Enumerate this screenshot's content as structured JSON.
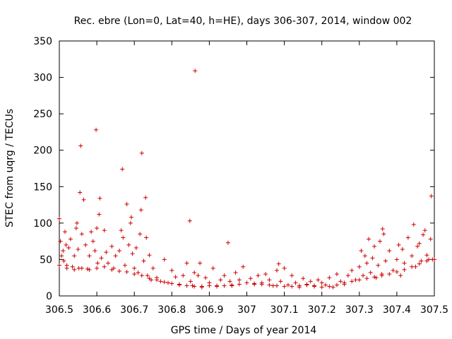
{
  "chart_data": {
    "type": "scatter",
    "title": "Rec. ebre (Lon=0, Lat=40, h=HE), days 306-307, 2014, window 002",
    "xlabel": "GPS time / Days of year 2014",
    "ylabel": "STEC from uqrg / TECUs",
    "xlim": [
      306.5,
      307.5
    ],
    "ylim": [
      0,
      350
    ],
    "xticks": [
      "306.5",
      "306.6",
      "306.7",
      "306.8",
      "306.9",
      "307",
      "307.1",
      "307.2",
      "307.3",
      "307.4",
      "307.5"
    ],
    "yticks": [
      "0",
      "50",
      "100",
      "150",
      "200",
      "250",
      "300",
      "350"
    ],
    "marker": "+",
    "color": "#cc0000",
    "grid": false,
    "legend": false,
    "series": [
      {
        "name": "STEC",
        "points": [
          [
            306.5,
            106
          ],
          [
            306.503,
            75
          ],
          [
            306.506,
            55
          ],
          [
            306.51,
            62
          ],
          [
            306.512,
            48
          ],
          [
            306.515,
            88
          ],
          [
            306.518,
            70
          ],
          [
            306.52,
            42
          ],
          [
            306.525,
            66
          ],
          [
            306.53,
            78
          ],
          [
            306.535,
            40
          ],
          [
            306.54,
            55
          ],
          [
            306.545,
            93
          ],
          [
            306.547,
            100
          ],
          [
            306.55,
            64
          ],
          [
            306.552,
            38
          ],
          [
            306.555,
            142
          ],
          [
            306.557,
            206
          ],
          [
            306.56,
            85
          ],
          [
            306.565,
            132
          ],
          [
            306.57,
            70
          ],
          [
            306.575,
            37
          ],
          [
            306.58,
            55
          ],
          [
            306.585,
            88
          ],
          [
            306.59,
            75
          ],
          [
            306.595,
            62
          ],
          [
            306.598,
            228
          ],
          [
            306.6,
            93
          ],
          [
            306.602,
            45
          ],
          [
            306.606,
            112
          ],
          [
            306.608,
            134
          ],
          [
            306.612,
            52
          ],
          [
            306.62,
            90
          ],
          [
            306.625,
            60
          ],
          [
            306.63,
            45
          ],
          [
            306.64,
            68
          ],
          [
            306.645,
            38
          ],
          [
            306.65,
            55
          ],
          [
            306.66,
            62
          ],
          [
            306.665,
            90
          ],
          [
            306.668,
            174
          ],
          [
            306.67,
            80
          ],
          [
            306.675,
            42
          ],
          [
            306.68,
            126
          ],
          [
            306.685,
            70
          ],
          [
            306.69,
            100
          ],
          [
            306.692,
            108
          ],
          [
            306.695,
            58
          ],
          [
            306.7,
            38
          ],
          [
            306.705,
            66
          ],
          [
            306.71,
            32
          ],
          [
            306.715,
            85
          ],
          [
            306.718,
            118
          ],
          [
            306.72,
            196
          ],
          [
            306.725,
            48
          ],
          [
            306.73,
            135
          ],
          [
            306.732,
            80
          ],
          [
            306.735,
            28
          ],
          [
            306.74,
            56
          ],
          [
            306.745,
            22
          ],
          [
            306.75,
            38
          ],
          [
            306.76,
            25
          ],
          [
            306.77,
            20
          ],
          [
            306.78,
            50
          ],
          [
            306.79,
            18
          ],
          [
            306.8,
            35
          ],
          [
            306.81,
            26
          ],
          [
            306.82,
            15
          ],
          [
            306.83,
            28
          ],
          [
            306.84,
            45
          ],
          [
            306.848,
            103
          ],
          [
            306.85,
            20
          ],
          [
            306.855,
            14
          ],
          [
            306.86,
            32
          ],
          [
            306.862,
            309
          ],
          [
            306.87,
            28
          ],
          [
            306.875,
            45
          ],
          [
            306.88,
            12
          ],
          [
            306.89,
            25
          ],
          [
            306.9,
            18
          ],
          [
            306.91,
            38
          ],
          [
            306.92,
            14
          ],
          [
            306.93,
            22
          ],
          [
            306.94,
            28
          ],
          [
            306.95,
            73
          ],
          [
            306.955,
            20
          ],
          [
            306.96,
            15
          ],
          [
            306.97,
            32
          ],
          [
            306.98,
            22
          ],
          [
            306.99,
            40
          ],
          [
            307.01,
            24
          ],
          [
            307.02,
            16
          ],
          [
            307.03,
            28
          ],
          [
            307.04,
            18
          ],
          [
            307.05,
            30
          ],
          [
            307.06,
            22
          ],
          [
            307.07,
            14
          ],
          [
            307.08,
            35
          ],
          [
            307.085,
            44
          ],
          [
            307.09,
            20
          ],
          [
            307.1,
            38
          ],
          [
            307.11,
            15
          ],
          [
            307.12,
            28
          ],
          [
            307.13,
            18
          ],
          [
            307.14,
            12
          ],
          [
            307.15,
            24
          ],
          [
            307.16,
            16
          ],
          [
            307.17,
            20
          ],
          [
            307.18,
            14
          ],
          [
            307.19,
            22
          ],
          [
            307.2,
            18
          ],
          [
            307.21,
            15
          ],
          [
            307.22,
            25
          ],
          [
            307.23,
            12
          ],
          [
            307.24,
            30
          ],
          [
            307.25,
            20
          ],
          [
            307.26,
            16
          ],
          [
            307.27,
            28
          ],
          [
            307.28,
            35
          ],
          [
            307.29,
            22
          ],
          [
            307.3,
            40
          ],
          [
            307.305,
            62
          ],
          [
            307.31,
            28
          ],
          [
            307.315,
            55
          ],
          [
            307.32,
            45
          ],
          [
            307.325,
            78
          ],
          [
            307.33,
            32
          ],
          [
            307.335,
            52
          ],
          [
            307.34,
            68
          ],
          [
            307.345,
            25
          ],
          [
            307.35,
            42
          ],
          [
            307.355,
            75
          ],
          [
            307.36,
            30
          ],
          [
            307.362,
            92
          ],
          [
            307.365,
            85
          ],
          [
            307.37,
            48
          ],
          [
            307.38,
            62
          ],
          [
            307.39,
            35
          ],
          [
            307.4,
            50
          ],
          [
            307.405,
            70
          ],
          [
            307.41,
            28
          ],
          [
            307.415,
            64
          ],
          [
            307.42,
            45
          ],
          [
            307.43,
            80
          ],
          [
            307.44,
            55
          ],
          [
            307.445,
            98
          ],
          [
            307.45,
            40
          ],
          [
            307.455,
            68
          ],
          [
            307.46,
            72
          ],
          [
            307.465,
            48
          ],
          [
            307.47,
            84
          ],
          [
            307.475,
            90
          ],
          [
            307.48,
            56
          ],
          [
            307.485,
            50
          ],
          [
            307.49,
            78
          ],
          [
            307.492,
            137
          ],
          [
            307.495,
            50
          ],
          [
            306.5,
            42
          ],
          [
            306.52,
            38
          ],
          [
            306.54,
            36
          ],
          [
            306.56,
            38
          ],
          [
            306.58,
            36
          ],
          [
            306.6,
            38
          ],
          [
            306.62,
            40
          ],
          [
            306.64,
            36
          ],
          [
            306.66,
            34
          ],
          [
            306.68,
            33
          ],
          [
            306.7,
            30
          ],
          [
            306.72,
            28
          ],
          [
            306.74,
            24
          ],
          [
            306.76,
            22
          ],
          [
            306.78,
            19
          ],
          [
            306.8,
            17
          ],
          [
            306.82,
            16
          ],
          [
            306.84,
            14
          ],
          [
            306.86,
            13
          ],
          [
            306.88,
            13
          ],
          [
            306.9,
            14
          ],
          [
            306.92,
            13
          ],
          [
            306.94,
            14
          ],
          [
            306.96,
            14
          ],
          [
            306.98,
            16
          ],
          [
            307.0,
            18
          ],
          [
            307.02,
            17
          ],
          [
            307.04,
            16
          ],
          [
            307.06,
            15
          ],
          [
            307.08,
            14
          ],
          [
            307.1,
            13
          ],
          [
            307.12,
            13
          ],
          [
            307.14,
            14
          ],
          [
            307.16,
            15
          ],
          [
            307.18,
            13
          ],
          [
            307.2,
            12
          ],
          [
            307.22,
            13
          ],
          [
            307.24,
            15
          ],
          [
            307.26,
            18
          ],
          [
            307.28,
            20
          ],
          [
            307.3,
            22
          ],
          [
            307.32,
            24
          ],
          [
            307.34,
            26
          ],
          [
            307.36,
            28
          ],
          [
            307.38,
            30
          ],
          [
            307.4,
            33
          ],
          [
            307.42,
            36
          ],
          [
            307.44,
            40
          ],
          [
            307.46,
            44
          ],
          [
            307.48,
            48
          ],
          [
            307.5,
            50
          ]
        ]
      }
    ]
  }
}
